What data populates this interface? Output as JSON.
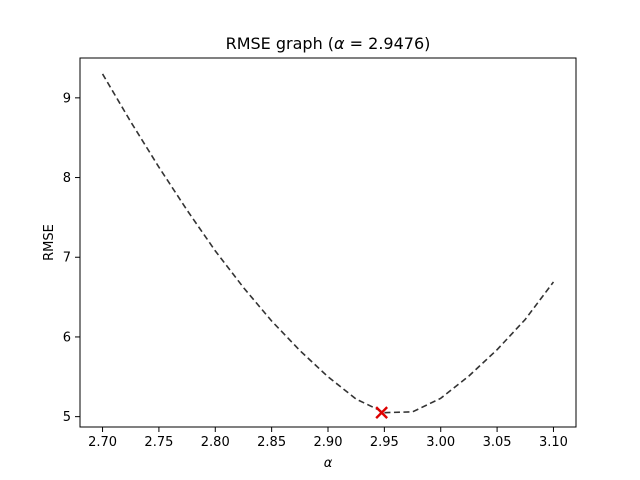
{
  "chart_data": {
    "type": "line",
    "title_prefix": "RMSE graph (",
    "title_symbol": "α",
    "title_suffix": " = 2.9476)",
    "xlabel": "α",
    "ylabel": "RMSE",
    "xlim": [
      2.68,
      3.12
    ],
    "ylim": [
      4.87,
      9.5
    ],
    "x_ticks": [
      2.7,
      2.75,
      2.8,
      2.85,
      2.9,
      2.95,
      3.0,
      3.05,
      3.1
    ],
    "x_tick_labels": [
      "2.70",
      "2.75",
      "2.80",
      "2.85",
      "2.90",
      "2.95",
      "3.00",
      "3.05",
      "3.10"
    ],
    "y_ticks": [
      5,
      6,
      7,
      8,
      9
    ],
    "y_tick_labels": [
      "5",
      "6",
      "7",
      "8",
      "9"
    ],
    "grid": false,
    "series": [
      {
        "style": "dashed",
        "color": "#333333",
        "x": [
          2.7,
          2.725,
          2.75,
          2.775,
          2.8,
          2.825,
          2.85,
          2.875,
          2.9,
          2.925,
          2.95,
          2.975,
          3.0,
          3.025,
          3.05,
          3.075,
          3.1
        ],
        "y": [
          9.3,
          8.7,
          8.13,
          7.59,
          7.08,
          6.62,
          6.2,
          5.83,
          5.5,
          5.22,
          5.05,
          5.06,
          5.23,
          5.51,
          5.84,
          6.22,
          6.69
        ]
      }
    ],
    "marker": {
      "x": 2.9476,
      "y": 5.05,
      "symbol": "x",
      "color": "#dd0000"
    }
  }
}
